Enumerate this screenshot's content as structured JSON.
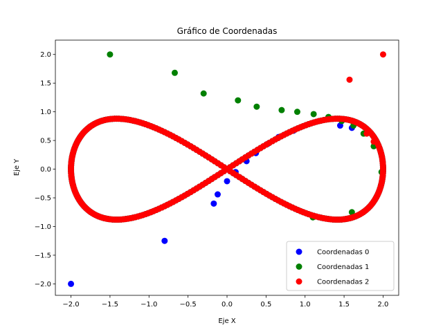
{
  "chart_data": {
    "type": "scatter",
    "title": "Gráfico de Coordenadas",
    "xlabel": "Eje X",
    "ylabel": "Eje Y",
    "xlim": [
      -2.2,
      2.2
    ],
    "ylim": [
      -2.2,
      2.25
    ],
    "xticks": [
      -2.0,
      -1.5,
      -1.0,
      -0.5,
      0.0,
      0.5,
      1.0,
      1.5,
      2.0
    ],
    "xtick_labels": [
      "−2.0",
      "−1.5",
      "−1.0",
      "−0.5",
      "0.0",
      "0.5",
      "1.0",
      "1.5",
      "2.0"
    ],
    "yticks": [
      -2.0,
      -1.5,
      -1.0,
      -0.5,
      0.0,
      0.5,
      1.0,
      1.5,
      2.0
    ],
    "ytick_labels": [
      "−2.0",
      "−1.5",
      "−1.0",
      "−0.5",
      "0.0",
      "0.5",
      "1.0",
      "1.5",
      "2.0"
    ],
    "grid": false,
    "legend_position": "lower-right",
    "curve": {
      "shape": "lemniscate of Gerono",
      "x_amplitude": 2.0,
      "y_amplitude": 0.88
    },
    "series": [
      {
        "name": "Coordenadas 0",
        "color": "#0000ff",
        "extra_points": [
          {
            "x": -2.0,
            "y": -2.0
          },
          {
            "x": -0.8,
            "y": -1.25
          },
          {
            "x": -0.17,
            "y": -0.6
          },
          {
            "x": -0.12,
            "y": -0.44
          },
          {
            "x": 0.0,
            "y": -0.21
          },
          {
            "x": 0.11,
            "y": -0.05
          },
          {
            "x": 0.25,
            "y": 0.14
          },
          {
            "x": 0.37,
            "y": 0.28
          },
          {
            "x": 0.52,
            "y": 0.44
          },
          {
            "x": 0.66,
            "y": 0.56
          },
          {
            "x": 0.85,
            "y": 0.67
          },
          {
            "x": 1.45,
            "y": 0.76
          },
          {
            "x": 1.6,
            "y": 0.72
          }
        ]
      },
      {
        "name": "Coordenadas 1",
        "color": "#008000",
        "extra_points": [
          {
            "x": -1.5,
            "y": 2.0
          },
          {
            "x": -0.67,
            "y": 1.68
          },
          {
            "x": -0.3,
            "y": 1.32
          },
          {
            "x": 0.14,
            "y": 1.2
          },
          {
            "x": 0.38,
            "y": 1.09
          },
          {
            "x": 0.7,
            "y": 1.03
          },
          {
            "x": 0.9,
            "y": 1.0
          },
          {
            "x": 1.11,
            "y": 0.96
          },
          {
            "x": 1.3,
            "y": 0.91
          },
          {
            "x": 1.47,
            "y": 0.84
          },
          {
            "x": 1.62,
            "y": 0.76
          },
          {
            "x": 1.75,
            "y": 0.62
          },
          {
            "x": 1.88,
            "y": 0.4
          },
          {
            "x": 1.98,
            "y": -0.05
          },
          {
            "x": 1.6,
            "y": -0.75
          },
          {
            "x": 1.1,
            "y": -0.84
          }
        ]
      },
      {
        "name": "Coordenadas 2",
        "color": "#ff0000",
        "extra_points": [
          {
            "x": 2.0,
            "y": 2.0
          },
          {
            "x": 1.57,
            "y": 1.56
          },
          {
            "x": 1.65,
            "y": 0.82
          },
          {
            "x": 1.79,
            "y": 0.62
          },
          {
            "x": 1.88,
            "y": 0.48
          }
        ]
      }
    ]
  }
}
